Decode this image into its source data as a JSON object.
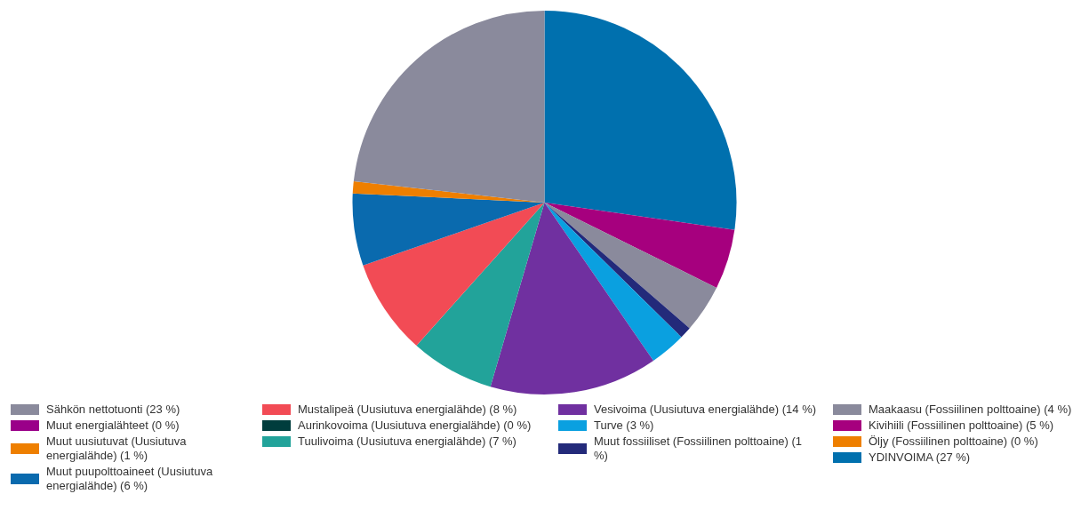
{
  "chart_data": {
    "type": "pie",
    "categories": [
      "YDINVOIMA (27 %)",
      "Öljy (Fossiilinen polttoaine) (0 %)",
      "Kivihiili (Fossiilinen polttoaine) (5 %)",
      "Maakaasu (Fossiilinen polttoaine) (4 %)",
      "Muut fossiiliset (Fossiilinen polttoaine) (1 %)",
      "Turve (3 %)",
      "Vesivoima (Uusiutuva energialähde) (14 %)",
      "Tuulivoima (Uusiutuva energialähde) (7 %)",
      "Aurinkovoima (Uusiutuva energialähde) (0 %)",
      "Mustalipeä (Uusiutuva energialähde) (8 %)",
      "Muut puupolttoaineet (Uusiutuva energialähde) (6 %)",
      "Muut uusiutuvat (Uusiutuva energialähde) (1 %)",
      "Muut energialähteet (0 %)",
      "Sähkön nettotuonti (23 %)"
    ],
    "values": [
      27,
      0,
      5,
      4,
      1,
      3,
      14,
      7,
      0,
      8,
      6,
      1,
      0,
      23
    ],
    "colors": [
      "#0070ae",
      "#ee7f00",
      "#a6007e",
      "#8a8a9c",
      "#232a7a",
      "#0aa0e0",
      "#7030a0",
      "#22a39a",
      "#003d3d",
      "#f24b55",
      "#0a6aae",
      "#ee7f00",
      "#9a0089",
      "#8a8a9c"
    ],
    "legend": "bottom"
  }
}
